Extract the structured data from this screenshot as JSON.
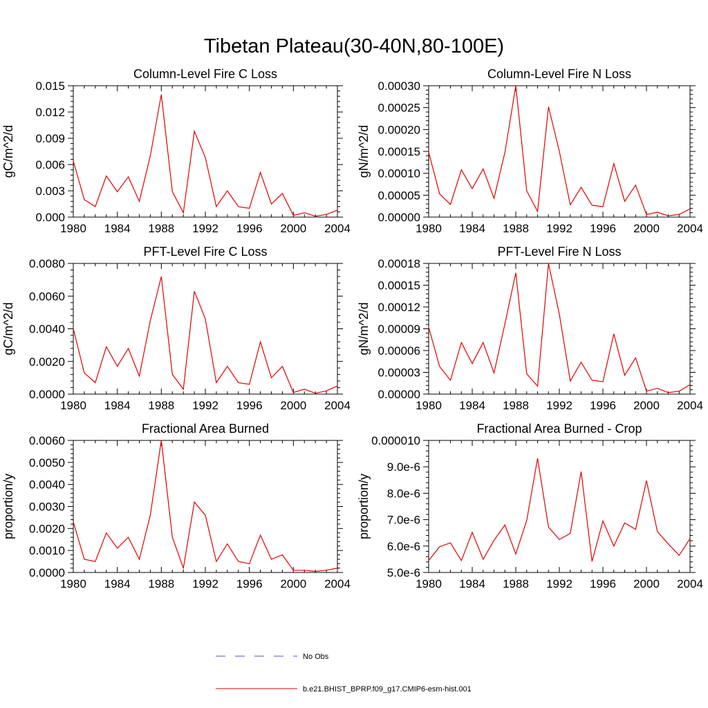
{
  "figure": {
    "title": "Tibetan Plateau(30-40N,80-100E)"
  },
  "legend": {
    "entries": [
      {
        "label": "No Obs",
        "color": "#5050c8",
        "style": "dashed"
      },
      {
        "label": "b.e21.BHIST_BPRP.f09_g17.CMIP6-esm-hist.001",
        "color": "#e00000",
        "style": "solid"
      }
    ]
  },
  "chart_data": [
    {
      "type": "line",
      "title": "Column-Level Fire C Loss",
      "ylabel": "gC/m^2/d",
      "xlim": [
        1980,
        2004
      ],
      "ylim": [
        0,
        0.015
      ],
      "xticks": [
        1980,
        1984,
        1988,
        1992,
        1996,
        2000,
        2004
      ],
      "xtick_labels": [
        "1980",
        "1984",
        "1988",
        "1992",
        "1996",
        "2000",
        "2004"
      ],
      "yticks": [
        0,
        0.003,
        0.006,
        0.009,
        0.012,
        0.015
      ],
      "ytick_labels": [
        "0.000",
        "0.003",
        "0.006",
        "0.009",
        "0.012",
        "0.015"
      ],
      "x": [
        1980,
        1981,
        1982,
        1983,
        1984,
        1985,
        1986,
        1987,
        1988,
        1989,
        1990,
        1991,
        1992,
        1993,
        1994,
        1995,
        1996,
        1997,
        1998,
        1999,
        2000,
        2001,
        2002,
        2003,
        2004
      ],
      "series": [
        {
          "color": "#e00000",
          "values": [
            0.0064,
            0.002,
            0.0012,
            0.0047,
            0.0029,
            0.0046,
            0.0018,
            0.007,
            0.014,
            0.0029,
            0.0005,
            0.0098,
            0.0068,
            0.0012,
            0.003,
            0.0012,
            0.001,
            0.0051,
            0.0015,
            0.0027,
            0.0002,
            0.0005,
            0.0001,
            0.0003,
            0.0008
          ]
        }
      ]
    },
    {
      "type": "line",
      "title": "Column-Level Fire N Loss",
      "ylabel": "gN/m^2/d",
      "xlim": [
        1980,
        2004
      ],
      "ylim": [
        0,
        0.0003
      ],
      "xticks": [
        1980,
        1984,
        1988,
        1992,
        1996,
        2000,
        2004
      ],
      "xtick_labels": [
        "1980",
        "1984",
        "1988",
        "1992",
        "1996",
        "2000",
        "2004"
      ],
      "yticks": [
        0,
        5e-05,
        0.0001,
        0.00015,
        0.0002,
        0.00025,
        0.0003
      ],
      "ytick_labels": [
        "0.00000",
        "0.00005",
        "0.00010",
        "0.00015",
        "0.00020",
        "0.00025",
        "0.00030"
      ],
      "x": [
        1980,
        1981,
        1982,
        1983,
        1984,
        1985,
        1986,
        1987,
        1988,
        1989,
        1990,
        1991,
        1992,
        1993,
        1994,
        1995,
        1996,
        1997,
        1998,
        1999,
        2000,
        2001,
        2002,
        2003,
        2004
      ],
      "series": [
        {
          "color": "#e00000",
          "values": [
            0.000148,
            5.3e-05,
            2.9e-05,
            0.000108,
            6.5e-05,
            0.00011,
            4.3e-05,
            0.000148,
            0.0003,
            6e-05,
            1.3e-05,
            0.000252,
            0.00015,
            2.8e-05,
            6.8e-05,
            2.7e-05,
            2.4e-05,
            0.000122,
            3.6e-05,
            7.3e-05,
            6e-06,
            1.1e-05,
            3e-06,
            6e-06,
            1.9e-05
          ]
        }
      ]
    },
    {
      "type": "line",
      "title": "PFT-Level Fire C Loss",
      "ylabel": "gC/m^2/d",
      "xlim": [
        1980,
        2004
      ],
      "ylim": [
        0,
        0.008
      ],
      "xticks": [
        1980,
        1984,
        1988,
        1992,
        1996,
        2000,
        2004
      ],
      "xtick_labels": [
        "1980",
        "1984",
        "1988",
        "1992",
        "1996",
        "2000",
        "2004"
      ],
      "yticks": [
        0,
        0.002,
        0.004,
        0.006,
        0.008
      ],
      "ytick_labels": [
        "0.0000",
        "0.0020",
        "0.0040",
        "0.0060",
        "0.0080"
      ],
      "x": [
        1980,
        1981,
        1982,
        1983,
        1984,
        1985,
        1986,
        1987,
        1988,
        1989,
        1990,
        1991,
        1992,
        1993,
        1994,
        1995,
        1996,
        1997,
        1998,
        1999,
        2000,
        2001,
        2002,
        2003,
        2004
      ],
      "series": [
        {
          "color": "#e00000",
          "values": [
            0.004,
            0.0013,
            0.0007,
            0.0029,
            0.0017,
            0.0028,
            0.0011,
            0.0045,
            0.0072,
            0.0012,
            0.0003,
            0.0063,
            0.0046,
            0.0007,
            0.0017,
            0.0007,
            0.0006,
            0.0032,
            0.001,
            0.0017,
            0.0001,
            0.0003,
            5e-05,
            0.0002,
            0.0005
          ]
        }
      ]
    },
    {
      "type": "line",
      "title": "PFT-Level Fire N Loss",
      "ylabel": "gN/m^2/d",
      "xlim": [
        1980,
        2004
      ],
      "ylim": [
        0,
        0.00018
      ],
      "xticks": [
        1980,
        1984,
        1988,
        1992,
        1996,
        2000,
        2004
      ],
      "xtick_labels": [
        "1980",
        "1984",
        "1988",
        "1992",
        "1996",
        "2000",
        "2004"
      ],
      "yticks": [
        0,
        3e-05,
        6e-05,
        9e-05,
        0.00012,
        0.00015,
        0.00018
      ],
      "ytick_labels": [
        "0.00000",
        "0.00003",
        "0.00006",
        "0.00009",
        "0.00012",
        "0.00015",
        "0.00018"
      ],
      "x": [
        1980,
        1981,
        1982,
        1983,
        1984,
        1985,
        1986,
        1987,
        1988,
        1989,
        1990,
        1991,
        1992,
        1993,
        1994,
        1995,
        1996,
        1997,
        1998,
        1999,
        2000,
        2001,
        2002,
        2003,
        2004
      ],
      "series": [
        {
          "color": "#e00000",
          "values": [
            9.2e-05,
            3.8e-05,
            1.9e-05,
            7.1e-05,
            4.2e-05,
            7.1e-05,
            2.9e-05,
            9.7e-05,
            0.000167,
            2.8e-05,
            1.1e-05,
            0.00018,
            0.00011,
            1.8e-05,
            4.4e-05,
            1.9e-05,
            1.7e-05,
            8.3e-05,
            2.6e-05,
            5e-05,
            4e-06,
            8e-06,
            2e-06,
            4e-06,
            1.3e-05
          ]
        }
      ]
    },
    {
      "type": "line",
      "title": "Fractional Area Burned",
      "ylabel": "proportion/y",
      "xlim": [
        1980,
        2004
      ],
      "ylim": [
        0,
        0.006
      ],
      "xticks": [
        1980,
        1984,
        1988,
        1992,
        1996,
        2000,
        2004
      ],
      "xtick_labels": [
        "1980",
        "1984",
        "1988",
        "1992",
        "1996",
        "2000",
        "2004"
      ],
      "yticks": [
        0,
        0.001,
        0.002,
        0.003,
        0.004,
        0.005,
        0.006
      ],
      "ytick_labels": [
        "0.0000",
        "0.0010",
        "0.0020",
        "0.0030",
        "0.0040",
        "0.0050",
        "0.0060"
      ],
      "x": [
        1980,
        1981,
        1982,
        1983,
        1984,
        1985,
        1986,
        1987,
        1988,
        1989,
        1990,
        1991,
        1992,
        1993,
        1994,
        1995,
        1996,
        1997,
        1998,
        1999,
        2000,
        2001,
        2002,
        2003,
        2004
      ],
      "series": [
        {
          "color": "#e00000",
          "values": [
            0.0023,
            0.0006,
            0.0005,
            0.0018,
            0.0011,
            0.0016,
            0.0006,
            0.0026,
            0.006,
            0.0016,
            0.0002,
            0.0032,
            0.0026,
            0.0005,
            0.0013,
            0.0005,
            0.0004,
            0.0017,
            0.0006,
            0.0008,
            0.0001,
            0.0001,
            5e-05,
            0.0001,
            0.0002
          ]
        }
      ]
    },
    {
      "type": "line",
      "title": "Fractional Area Burned - Crop",
      "ylabel": "proportion/y",
      "xlim": [
        1980,
        2004
      ],
      "ylim": [
        5e-06,
        1e-05
      ],
      "xticks": [
        1980,
        1984,
        1988,
        1992,
        1996,
        2000,
        2004
      ],
      "xtick_labels": [
        "1980",
        "1984",
        "1988",
        "1992",
        "1996",
        "2000",
        "2004"
      ],
      "yticks": [
        5e-06,
        6e-06,
        7e-06,
        8e-06,
        9e-06,
        1e-05
      ],
      "ytick_labels": [
        "5.0e-6",
        "6.0e-6",
        "7.0e-6",
        "8.0e-6",
        "9.0e-6",
        "0.000010"
      ],
      "x": [
        1980,
        1981,
        1982,
        1983,
        1984,
        1985,
        1986,
        1987,
        1988,
        1989,
        1990,
        1991,
        1992,
        1993,
        1994,
        1995,
        1996,
        1997,
        1998,
        1999,
        2000,
        2001,
        2002,
        2003,
        2004
      ],
      "series": [
        {
          "color": "#e00000",
          "values": [
            5.45e-06,
            5.98e-06,
            6.12e-06,
            5.45e-06,
            6.52e-06,
            5.5e-06,
            6.22e-06,
            6.8e-06,
            5.7e-06,
            6.97e-06,
            9.32e-06,
            6.72e-06,
            6.25e-06,
            6.48e-06,
            8.82e-06,
            5.42e-06,
            6.95e-06,
            6e-06,
            6.88e-06,
            6.63e-06,
            8.48e-06,
            6.55e-06,
            6.08e-06,
            5.65e-06,
            6.28e-06
          ]
        }
      ]
    }
  ]
}
